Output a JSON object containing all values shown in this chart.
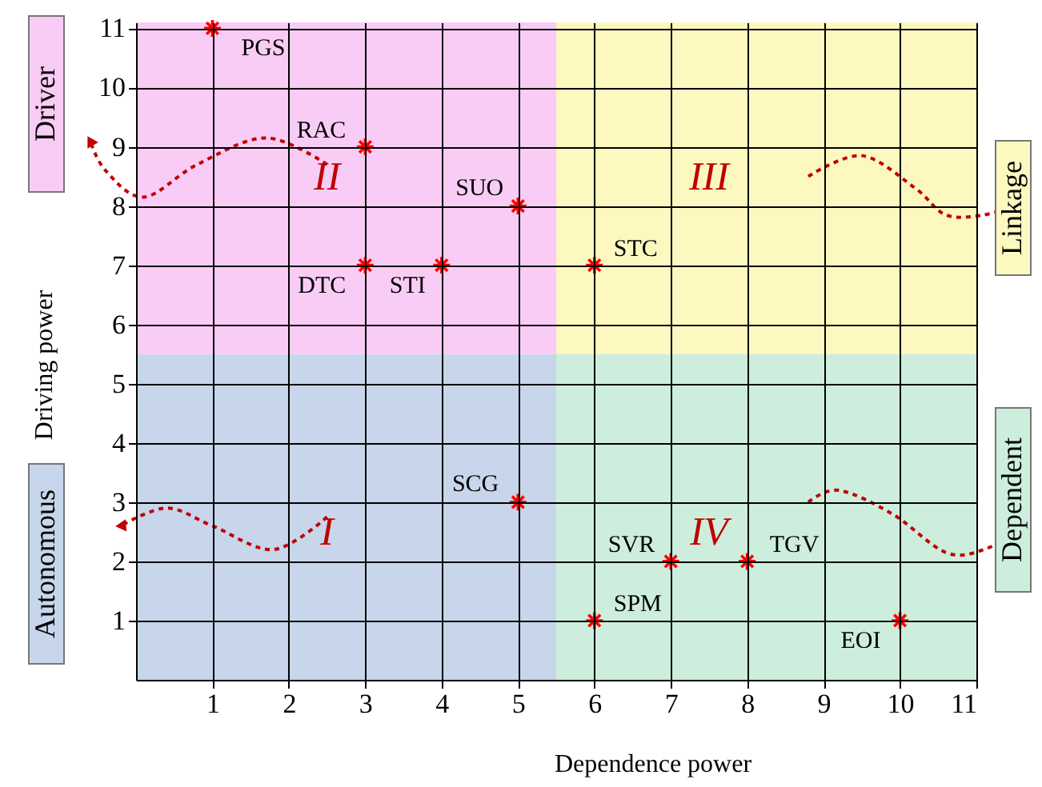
{
  "chart_data": {
    "type": "scatter",
    "xlabel": "Dependence power",
    "ylabel": "Driving power",
    "series": [
      {
        "color": "#ff0000",
        "x": [
          1,
          3,
          5,
          3,
          4,
          6,
          5,
          7,
          8,
          6,
          10
        ],
        "values": [
          11,
          9,
          8,
          7,
          7,
          7,
          3,
          2,
          2,
          1,
          1
        ],
        "value_labels": [
          "PGS",
          "RAC",
          "SUO",
          "DTC",
          "STI",
          "STC",
          "SCG",
          "SVR",
          "TGV",
          "SPM",
          "EOI"
        ]
      }
    ],
    "xlim": [
      0,
      11
    ],
    "ylim": [
      0,
      11.1
    ],
    "xticks": [
      1,
      2,
      3,
      4,
      5,
      6,
      7,
      8,
      9,
      10,
      11
    ],
    "yticks": [
      1,
      2,
      3,
      4,
      5,
      6,
      7,
      8,
      9,
      10,
      11
    ],
    "grid": true,
    "marker": "cross",
    "bands": [
      {
        "axis": "x",
        "from": 0,
        "to": 5.5,
        "color": "#c7d6ea"
      },
      {
        "axis": "x",
        "from": 0,
        "to": 5.5,
        "color": "#f9ccf5"
      },
      {
        "axis": "x",
        "from": 5.5,
        "to": 11,
        "color": "#fdf8c0"
      },
      {
        "axis": "x",
        "from": 5.5,
        "to": 11,
        "color": "#cdeedd"
      }
    ],
    "annotations": [
      "I",
      "II",
      "III",
      "IV",
      "Autonomous",
      "Driver",
      "Linkage",
      "Dependent"
    ]
  }
}
